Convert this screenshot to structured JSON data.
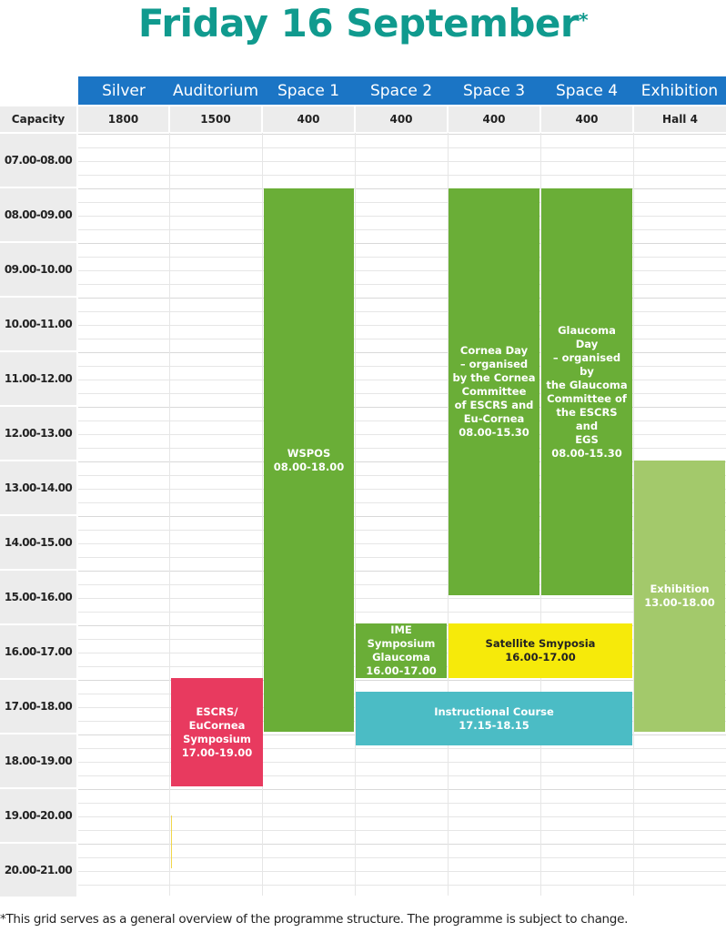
{
  "title": "Friday 16 September",
  "title_marker": "*",
  "columns": [
    {
      "header": "Silver",
      "capacity": "1800"
    },
    {
      "header": "Auditorium",
      "capacity": "1500"
    },
    {
      "header": "Space 1",
      "capacity": "400"
    },
    {
      "header": "Space 2",
      "capacity": "400"
    },
    {
      "header": "Space 3",
      "capacity": "400"
    },
    {
      "header": "Space 4",
      "capacity": "400"
    },
    {
      "header": "Exhibition",
      "capacity": "Hall 4"
    }
  ],
  "capacity_label": "Capacity",
  "time_slots": [
    "07.00-08.00",
    "08.00-09.00",
    "09.00-10.00",
    "10.00-11.00",
    "11.00-12.00",
    "12.00-13.00",
    "13.00-14.00",
    "14.00-15.00",
    "15.00-16.00",
    "16.00-17.00",
    "17.00-18.00",
    "18.00-19.00",
    "19.00-20.00",
    "20.00-21.00"
  ],
  "sessions": {
    "wspos": {
      "lines": [
        "WSPOS",
        "08.00-18.00"
      ],
      "color": "#6aae37"
    },
    "cornea": {
      "lines": [
        "Cornea Day",
        "– organised",
        "by the Cornea",
        "Committee",
        "of ESCRS and",
        "Eu-Cornea",
        "08.00-15.30"
      ],
      "color": "#6aae37"
    },
    "glaucoma": {
      "lines": [
        "Glaucoma Day",
        "– organised by",
        "the Glaucoma",
        "Committee of",
        "the ESCRS and",
        "EGS",
        "08.00-15.30"
      ],
      "color": "#6aae37"
    },
    "exhibition": {
      "lines": [
        "Exhibition",
        "13.00-18.00"
      ],
      "color": "#a3c96b"
    },
    "ime": {
      "lines": [
        "IME Symposium",
        "Glaucoma",
        "16.00-17.00"
      ],
      "color": "#6aae37"
    },
    "satellite": {
      "lines": [
        "Satellite Smyposia",
        "16.00-17.00"
      ],
      "color": "#f6ea0a"
    },
    "instructional": {
      "lines": [
        "Instructional Course",
        "17.15-18.15"
      ],
      "color": "#4bbcc5"
    },
    "escrs": {
      "lines": [
        "ESCRS/",
        "EuCornea",
        "Symposium",
        "17.00-19.00"
      ],
      "color": "#e83a5f"
    }
  },
  "footer": "*This grid serves as a general overview of the programme structure. The programme is subject to change."
}
